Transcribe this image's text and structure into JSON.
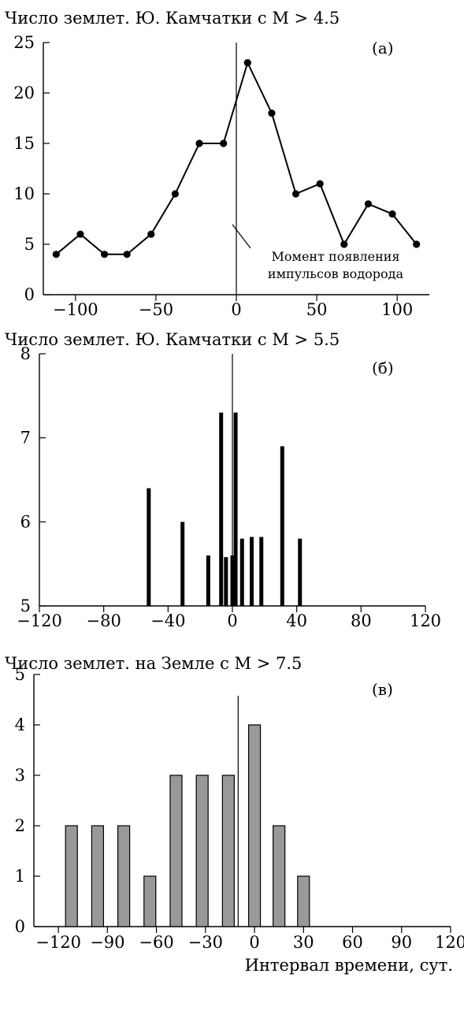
{
  "chart_data": [
    {
      "type": "line",
      "panel_label": "(а)",
      "title": "Число землет. Ю. Камчатки с M > 4.5",
      "xlabel": "",
      "ylabel": "",
      "xlim": [
        -120,
        120
      ],
      "ylim": [
        0,
        25
      ],
      "xticks": [
        -100,
        -50,
        0,
        50,
        100
      ],
      "yticks": [
        0,
        5,
        10,
        15,
        20,
        25
      ],
      "xtick_labels": [
        "−100",
        "−50",
        "0",
        "50",
        "100"
      ],
      "ytick_labels": [
        "0",
        "5",
        "10",
        "15",
        "20",
        "25"
      ],
      "marker_x": 0,
      "annotation": [
        "Момент появления",
        "импульсов водорода"
      ],
      "series": [
        {
          "x": [
            -112,
            -97,
            -82,
            -68,
            -53,
            -38,
            -23,
            -8,
            7,
            22,
            37,
            52,
            67,
            82,
            97,
            112
          ],
          "y": [
            4,
            6,
            4,
            4,
            6,
            10,
            15,
            15,
            23,
            18,
            10,
            11,
            5,
            9,
            8,
            5
          ]
        }
      ],
      "grid": false
    },
    {
      "type": "bar",
      "panel_label": "(б)",
      "title": "Число землет. Ю. Камчатки с M > 5.5",
      "xlabel": "",
      "ylabel": "",
      "xlim": [
        -120,
        120
      ],
      "ylim": [
        5,
        8
      ],
      "xticks": [
        -120,
        -80,
        -40,
        0,
        40,
        80,
        120
      ],
      "yticks": [
        5,
        6,
        7,
        8
      ],
      "xtick_labels": [
        "−120",
        "−80",
        "−40",
        "0",
        "40",
        "80",
        "120"
      ],
      "ytick_labels": [
        "5",
        "6",
        "7",
        "8"
      ],
      "marker_x": 0,
      "x": [
        -52,
        -31,
        -15,
        -7,
        -4,
        0,
        2,
        6,
        12,
        18,
        31,
        42
      ],
      "values": [
        6.4,
        6.0,
        5.6,
        7.3,
        5.58,
        5.6,
        7.3,
        5.8,
        5.82,
        5.82,
        6.9,
        5.8
      ],
      "grid": false
    },
    {
      "type": "bar",
      "panel_label": "(в)",
      "title": "Число землет. на Земле с M > 7.5",
      "xlabel": "Интервал времени, сут.",
      "ylabel": "",
      "xlim": [
        -135,
        120
      ],
      "ylim": [
        0,
        5
      ],
      "xticks": [
        -120,
        -90,
        -60,
        -30,
        0,
        30,
        60,
        90,
        120
      ],
      "yticks": [
        0,
        1,
        2,
        3,
        4,
        5
      ],
      "xtick_labels": [
        "−120",
        "−90",
        "−60",
        "−30",
        "0",
        "30",
        "60",
        "90",
        "120"
      ],
      "ytick_labels": [
        "0",
        "1",
        "2",
        "3",
        "4",
        "5"
      ],
      "marker_x": -10,
      "x": [
        -112,
        -96,
        -80,
        -64,
        -48,
        -32,
        -16,
        0,
        15,
        30
      ],
      "values": [
        2,
        2,
        2,
        1,
        3,
        3,
        3,
        4,
        2,
        1
      ],
      "colors": {
        "bar_fill": "#999999",
        "bar_stroke": "#000000"
      },
      "grid": false
    }
  ]
}
